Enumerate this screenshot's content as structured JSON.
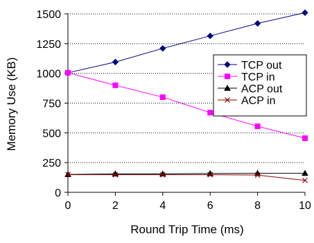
{
  "chart_data": {
    "type": "line",
    "title": "",
    "xlabel": "Round Trip Time (ms)",
    "ylabel": "Memory Use (KB)",
    "x": [
      0,
      2,
      4,
      6,
      8,
      10
    ],
    "xlim": [
      0,
      10
    ],
    "ylim": [
      0,
      1500
    ],
    "xticks": [
      0,
      2,
      4,
      6,
      8,
      10
    ],
    "yticks": [
      0,
      250,
      500,
      750,
      1000,
      1250,
      1500
    ],
    "grid": "horizontal dotted",
    "legend_position": "right-middle",
    "series": [
      {
        "name": "TCP out",
        "color": "#000080",
        "marker": "diamond",
        "values": [
          1005,
          1095,
          1210,
          1315,
          1420,
          1510
        ]
      },
      {
        "name": "TCP in",
        "color": "#ff00ff",
        "marker": "square",
        "values": [
          1005,
          900,
          800,
          670,
          555,
          455
        ]
      },
      {
        "name": "ACP out",
        "color": "#000000",
        "marker": "triangle",
        "values": [
          150,
          155,
          155,
          158,
          160,
          160
        ]
      },
      {
        "name": "ACP in",
        "color": "#8b0000",
        "marker": "x",
        "values": [
          148,
          148,
          148,
          148,
          145,
          100
        ]
      }
    ]
  }
}
